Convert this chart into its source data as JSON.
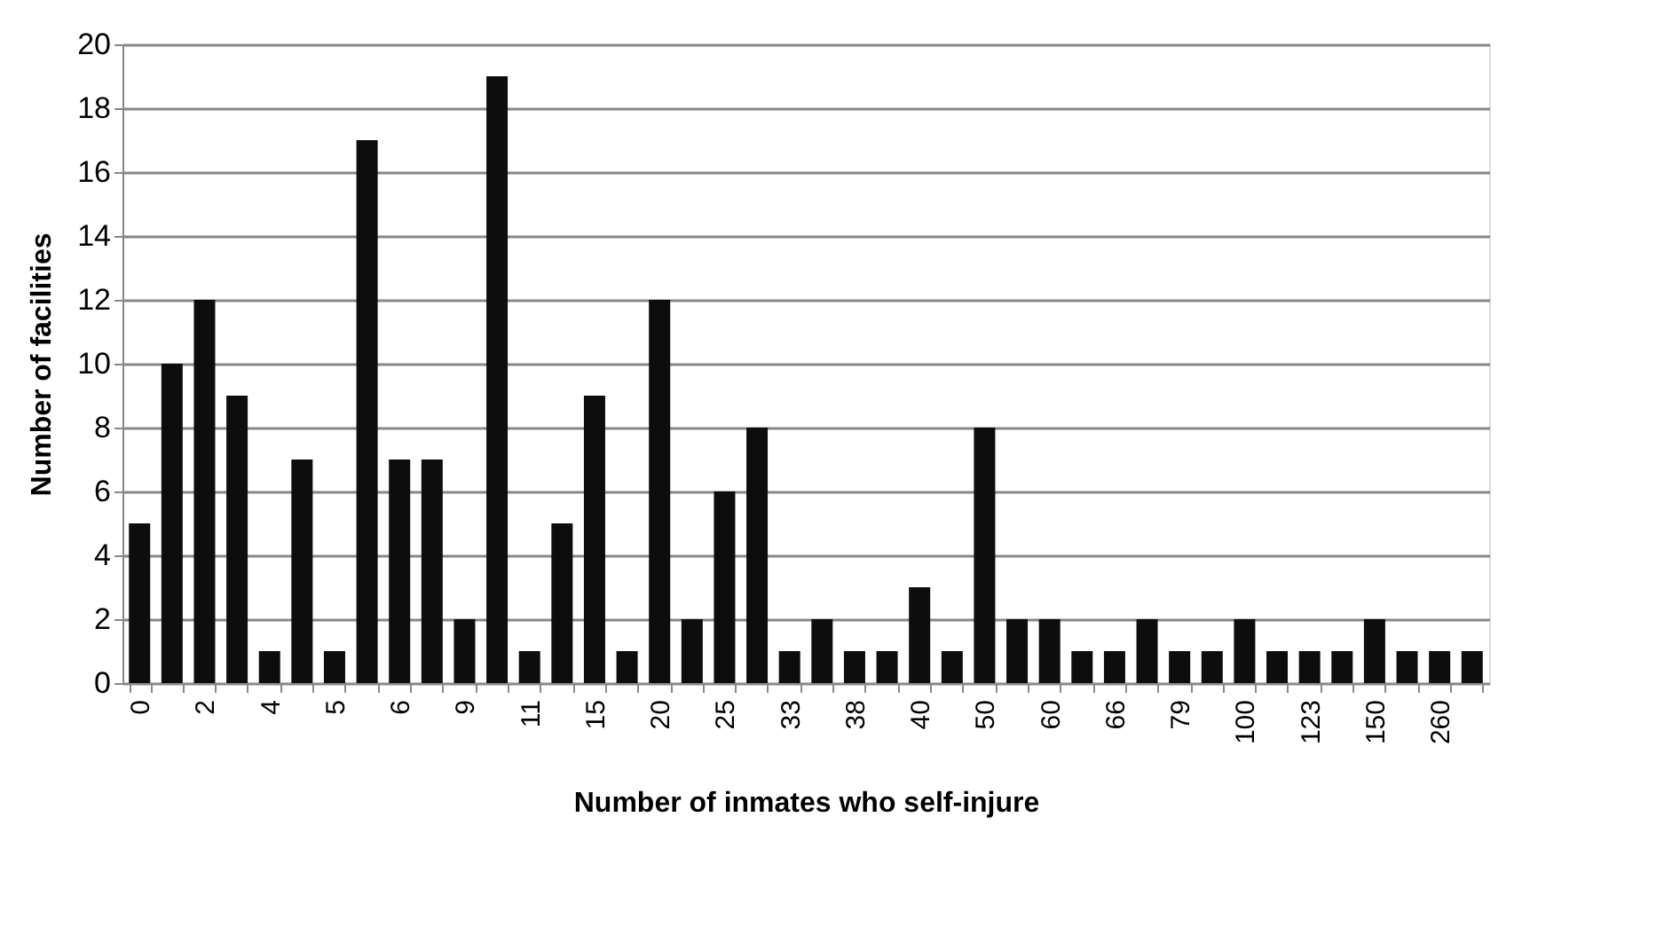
{
  "chart_data": {
    "type": "bar",
    "xlabel": "Number of inmates who self-injure",
    "ylabel": "Number of facilities",
    "categories": [
      "0",
      null,
      "2",
      null,
      "4",
      null,
      "5",
      null,
      "6",
      null,
      "9",
      null,
      "11",
      null,
      "15",
      null,
      "20",
      null,
      "25",
      null,
      "33",
      null,
      "38",
      null,
      "40",
      null,
      "50",
      null,
      "60",
      null,
      "66",
      null,
      "79",
      null,
      "100",
      null,
      "123",
      null,
      "150",
      null,
      "260",
      null
    ],
    "values": [
      5,
      10,
      12,
      9,
      1,
      7,
      1,
      17,
      7,
      7,
      2,
      19,
      1,
      5,
      9,
      1,
      12,
      2,
      6,
      8,
      1,
      2,
      1,
      1,
      3,
      1,
      8,
      2,
      2,
      1,
      1,
      2,
      1,
      1,
      2,
      1,
      1,
      1,
      2,
      1,
      1,
      1
    ],
    "color": "#0d0d0d",
    "ylim": [
      0,
      20
    ],
    "yticks": [
      0,
      2,
      4,
      6,
      8,
      10,
      12,
      14,
      16,
      18,
      20
    ],
    "grid": "y"
  }
}
